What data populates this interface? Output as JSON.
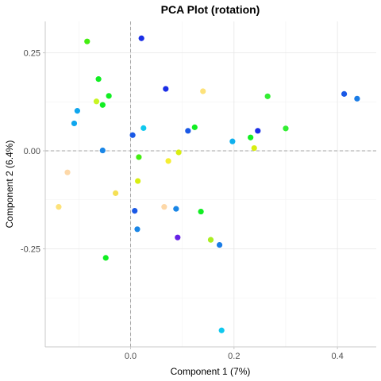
{
  "chart_data": {
    "type": "scatter",
    "title": "PCA Plot (rotation)",
    "xlabel": "Component 1 (7%)",
    "ylabel": "Component 2 (6.4%)",
    "xlim": [
      -0.165,
      0.475
    ],
    "ylim": [
      -0.5,
      0.33
    ],
    "x_ticks": [
      0.0,
      0.2,
      0.4
    ],
    "x_tick_labels": [
      "0.0",
      "0.2",
      "0.4"
    ],
    "y_ticks": [
      0.25,
      0.0,
      -0.25
    ],
    "y_tick_labels": [
      "0.25",
      "0.00",
      "-0.25"
    ],
    "reference_lines": {
      "x": 0,
      "y": 0,
      "style": "dashed"
    },
    "grid": true,
    "legend": "none",
    "points": [
      {
        "x": 0.021,
        "y": 0.287,
        "color": "#1a2ee6"
      },
      {
        "x": -0.084,
        "y": 0.279,
        "color": "#44ee11"
      },
      {
        "x": -0.062,
        "y": 0.183,
        "color": "#11ee22"
      },
      {
        "x": 0.068,
        "y": 0.158,
        "color": "#1a2ee6"
      },
      {
        "x": 0.14,
        "y": 0.152,
        "color": "#fde27a"
      },
      {
        "x": -0.042,
        "y": 0.14,
        "color": "#11ee22"
      },
      {
        "x": -0.066,
        "y": 0.126,
        "color": "#c8f522"
      },
      {
        "x": -0.054,
        "y": 0.117,
        "color": "#11ee22"
      },
      {
        "x": -0.103,
        "y": 0.102,
        "color": "#0fa6ee"
      },
      {
        "x": -0.109,
        "y": 0.07,
        "color": "#0fa6ee"
      },
      {
        "x": 0.413,
        "y": 0.145,
        "color": "#1a59e6"
      },
      {
        "x": 0.438,
        "y": 0.133,
        "color": "#1a7ce6"
      },
      {
        "x": 0.265,
        "y": 0.139,
        "color": "#33ee33"
      },
      {
        "x": 0.3,
        "y": 0.057,
        "color": "#33ee33"
      },
      {
        "x": 0.246,
        "y": 0.051,
        "color": "#1a2ee6"
      },
      {
        "x": 0.232,
        "y": 0.034,
        "color": "#11ee22"
      },
      {
        "x": 0.124,
        "y": 0.06,
        "color": "#11ee22"
      },
      {
        "x": 0.111,
        "y": 0.051,
        "color": "#1a59e6"
      },
      {
        "x": 0.025,
        "y": 0.058,
        "color": "#0fc8ee"
      },
      {
        "x": 0.004,
        "y": 0.04,
        "color": "#1a59e6"
      },
      {
        "x": 0.197,
        "y": 0.024,
        "color": "#0fb0ee"
      },
      {
        "x": 0.239,
        "y": 0.007,
        "color": "#d8ee11"
      },
      {
        "x": -0.054,
        "y": 0.001,
        "color": "#1a86e6"
      },
      {
        "x": 0.093,
        "y": -0.004,
        "color": "#d8ee11"
      },
      {
        "x": 0.016,
        "y": -0.016,
        "color": "#44ee11"
      },
      {
        "x": 0.073,
        "y": -0.026,
        "color": "#f5ee33"
      },
      {
        "x": -0.122,
        "y": -0.055,
        "color": "#fdd8a8"
      },
      {
        "x": 0.014,
        "y": -0.077,
        "color": "#d8ee11"
      },
      {
        "x": -0.029,
        "y": -0.108,
        "color": "#f5e055"
      },
      {
        "x": -0.139,
        "y": -0.143,
        "color": "#fde27a"
      },
      {
        "x": 0.065,
        "y": -0.143,
        "color": "#fdd8a8"
      },
      {
        "x": 0.088,
        "y": -0.148,
        "color": "#1a86e6"
      },
      {
        "x": 0.008,
        "y": -0.153,
        "color": "#1a59e6"
      },
      {
        "x": 0.136,
        "y": -0.155,
        "color": "#11ee22"
      },
      {
        "x": 0.013,
        "y": -0.2,
        "color": "#1a86e6"
      },
      {
        "x": 0.091,
        "y": -0.221,
        "color": "#6622e6"
      },
      {
        "x": 0.155,
        "y": -0.227,
        "color": "#aaee22"
      },
      {
        "x": 0.172,
        "y": -0.24,
        "color": "#1a7ce6"
      },
      {
        "x": -0.048,
        "y": -0.273,
        "color": "#11ee22"
      },
      {
        "x": 0.176,
        "y": -0.458,
        "color": "#0fc8ee"
      }
    ]
  }
}
